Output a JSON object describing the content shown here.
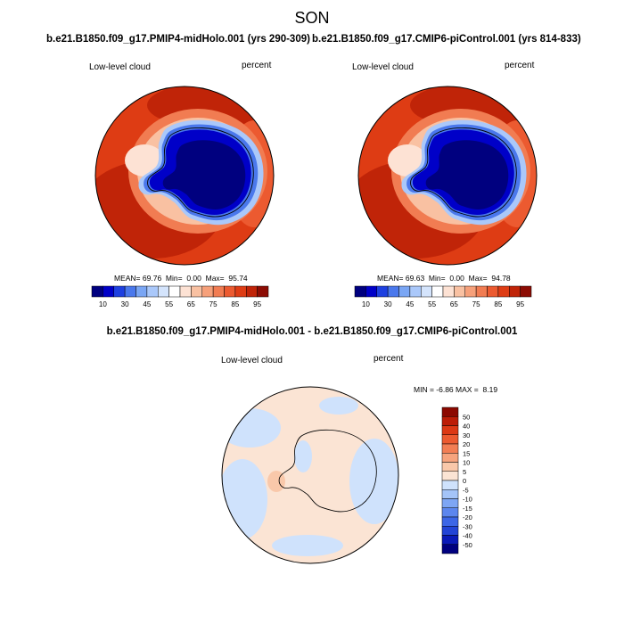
{
  "title": "SON",
  "colors": {
    "cloud_palette": [
      "#00007f",
      "#0000c8",
      "#1e40e0",
      "#4a78ec",
      "#7aa6f4",
      "#aac8fa",
      "#d4e4fc",
      "#ffffff",
      "#fde2d4",
      "#f9c1a2",
      "#f6a07a",
      "#f17c52",
      "#ec5a30",
      "#de3c14",
      "#c02408",
      "#8c0c04"
    ],
    "diff_palette": [
      "#00007f",
      "#0a1ab8",
      "#2244d6",
      "#3c66e6",
      "#5c86ee",
      "#7ea6f4",
      "#a4c4f8",
      "#cfe2fc",
      "#fbe4d4",
      "#f9c8aa",
      "#f6a47e",
      "#f27e54",
      "#ec5a30",
      "#dc3814",
      "#bc1c06",
      "#8c0800"
    ],
    "coast": "#000000"
  },
  "chart_data": [
    {
      "type": "heatmap",
      "projection": "south-polar-stereographic",
      "case": "b.e21.B1850.f09_g17.PMIP4-midHolo.001 (yrs 290-309)",
      "left_label": "Low-level cloud",
      "right_label": "percent",
      "stats": {
        "mean_label": "MEAN=",
        "mean": "69.76",
        "min_label": "Min=",
        "min": "0.00",
        "max_label": "Max=",
        "max": "95.74"
      },
      "colorbar": {
        "orientation": "horizontal",
        "tick_labels": [
          "10",
          "30",
          "45",
          "55",
          "65",
          "75",
          "85",
          "95"
        ]
      }
    },
    {
      "type": "heatmap",
      "projection": "south-polar-stereographic",
      "case": "b.e21.B1850.f09_g17.CMIP6-piControl.001 (yrs 814-833)",
      "left_label": "Low-level cloud",
      "right_label": "percent",
      "stats": {
        "mean_label": "MEAN=",
        "mean": "69.63",
        "min_label": "Min=",
        "min": "0.00",
        "max_label": "Max=",
        "max": "94.78"
      },
      "colorbar": {
        "orientation": "horizontal",
        "tick_labels": [
          "10",
          "30",
          "45",
          "55",
          "65",
          "75",
          "85",
          "95"
        ]
      }
    },
    {
      "type": "heatmap",
      "projection": "south-polar-stereographic",
      "case": "b.e21.B1850.f09_g17.PMIP4-midHolo.001 - b.e21.B1850.f09_g17.CMIP6-piControl.001",
      "left_label": "Low-level cloud",
      "right_label": "percent",
      "stats": {
        "min_label": "MIN =",
        "min": "-6.86",
        "max_label": "MAX =",
        "max": "8.19"
      },
      "colorbar": {
        "orientation": "vertical",
        "tick_labels": [
          "50",
          "40",
          "30",
          "20",
          "15",
          "10",
          "5",
          "0",
          "-5",
          "-10",
          "-15",
          "-20",
          "-30",
          "-40",
          "-50"
        ]
      }
    }
  ]
}
